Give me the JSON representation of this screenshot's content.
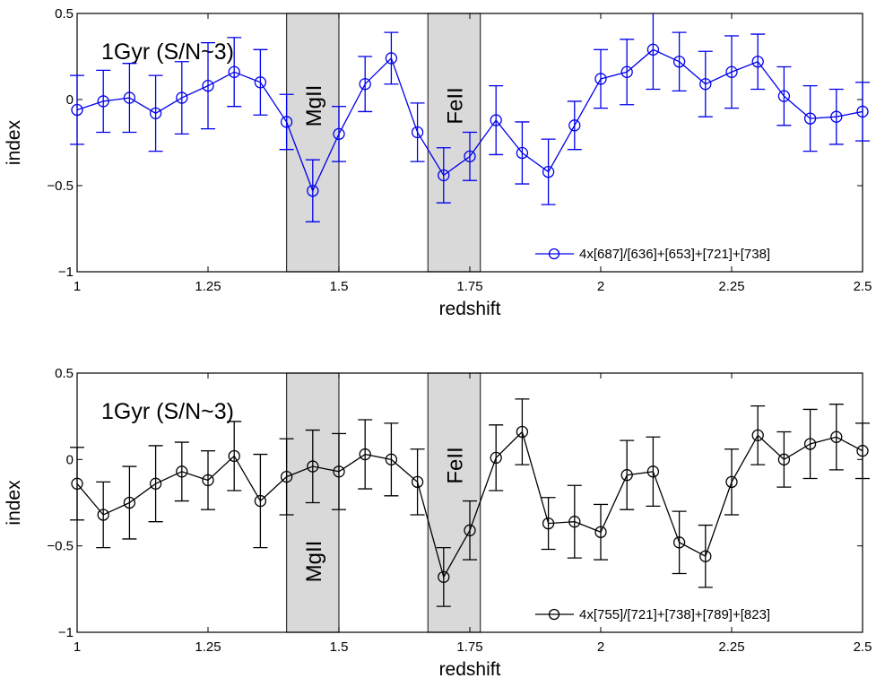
{
  "chart_data": [
    {
      "type": "line",
      "panel": "top",
      "title": "",
      "annotation": "1Gyr (S/N~3)",
      "xlabel": "redshift",
      "ylabel": "index",
      "xlim": [
        1,
        2.5
      ],
      "ylim": [
        -1,
        0.5
      ],
      "xticks": [
        1,
        1.25,
        1.5,
        1.75,
        2,
        2.25,
        2.5
      ],
      "xtick_labels": [
        "1",
        "1.25",
        "1.5",
        "1.75",
        "2",
        "2.25",
        "2.5"
      ],
      "yticks": [
        0.5,
        0,
        -0.5,
        -1
      ],
      "ytick_labels": [
        "0.5",
        "0",
        "−0.5",
        "−1"
      ],
      "color": "#0000ee",
      "legend": {
        "label": "4x[687]/[636]+[653]+[721]+[738]",
        "position": "bottom-right"
      },
      "bands": [
        {
          "label": "MgII",
          "x0": 1.4,
          "x1": 1.5,
          "label_pos": "upper"
        },
        {
          "label": "FeII",
          "x0": 1.67,
          "x1": 1.77,
          "label_pos": "upper"
        }
      ],
      "series": [
        {
          "name": "4x[687]/[636]+[653]+[721]+[738]",
          "x": [
            1.0,
            1.05,
            1.1,
            1.15,
            1.2,
            1.25,
            1.3,
            1.35,
            1.4,
            1.45,
            1.5,
            1.55,
            1.6,
            1.65,
            1.7,
            1.75,
            1.8,
            1.85,
            1.9,
            1.95,
            2.0,
            2.05,
            2.1,
            2.15,
            2.2,
            2.25,
            2.3,
            2.35,
            2.4,
            2.45,
            2.5
          ],
          "y": [
            -0.06,
            -0.01,
            0.01,
            -0.08,
            0.01,
            0.08,
            0.16,
            0.1,
            -0.13,
            -0.53,
            -0.2,
            0.09,
            0.24,
            -0.19,
            -0.44,
            -0.33,
            -0.12,
            -0.31,
            -0.42,
            -0.15,
            0.12,
            0.16,
            0.29,
            0.22,
            0.09,
            0.16,
            0.22,
            0.02,
            -0.11,
            -0.1,
            -0.07
          ],
          "err": [
            0.2,
            0.18,
            0.2,
            0.22,
            0.21,
            0.25,
            0.2,
            0.19,
            0.16,
            0.18,
            0.16,
            0.16,
            0.15,
            0.17,
            0.16,
            0.14,
            0.2,
            0.18,
            0.19,
            0.14,
            0.17,
            0.19,
            0.23,
            0.17,
            0.19,
            0.21,
            0.16,
            0.17,
            0.19,
            0.16,
            0.17
          ]
        }
      ]
    },
    {
      "type": "line",
      "panel": "bottom",
      "title": "",
      "annotation": "1Gyr (S/N~3)",
      "xlabel": "redshift",
      "ylabel": "index",
      "xlim": [
        1,
        2.5
      ],
      "ylim": [
        -1,
        0.5
      ],
      "xticks": [
        1,
        1.25,
        1.5,
        1.75,
        2,
        2.25,
        2.5
      ],
      "xtick_labels": [
        "1",
        "1.25",
        "1.5",
        "1.75",
        "2",
        "2.25",
        "2.5"
      ],
      "yticks": [
        0.5,
        0,
        -0.5,
        -1
      ],
      "ytick_labels": [
        "0.5",
        "0",
        "−0.5",
        "−1"
      ],
      "color": "#000000",
      "legend": {
        "label": "4x[755]/[721]+[738]+[789]+[823]",
        "position": "bottom-right"
      },
      "bands": [
        {
          "label": "MgII",
          "x0": 1.4,
          "x1": 1.5,
          "label_pos": "lower"
        },
        {
          "label": "FeII",
          "x0": 1.67,
          "x1": 1.77,
          "label_pos": "upper"
        }
      ],
      "series": [
        {
          "name": "4x[755]/[721]+[738]+[789]+[823]",
          "x": [
            1.0,
            1.05,
            1.1,
            1.15,
            1.2,
            1.25,
            1.3,
            1.35,
            1.4,
            1.45,
            1.5,
            1.55,
            1.6,
            1.65,
            1.7,
            1.75,
            1.8,
            1.85,
            1.9,
            1.95,
            2.0,
            2.05,
            2.1,
            2.15,
            2.2,
            2.25,
            2.3,
            2.35,
            2.4,
            2.45,
            2.5
          ],
          "y": [
            -0.14,
            -0.32,
            -0.25,
            -0.14,
            -0.07,
            -0.12,
            0.02,
            -0.24,
            -0.1,
            -0.04,
            -0.07,
            0.03,
            0.0,
            -0.13,
            -0.68,
            -0.41,
            0.01,
            0.16,
            -0.37,
            -0.36,
            -0.42,
            -0.09,
            -0.07,
            -0.48,
            -0.56,
            -0.13,
            0.14,
            0.0,
            0.09,
            0.13,
            0.05
          ],
          "err": [
            0.21,
            0.19,
            0.21,
            0.22,
            0.17,
            0.17,
            0.2,
            0.27,
            0.22,
            0.21,
            0.22,
            0.2,
            0.21,
            0.19,
            0.17,
            0.17,
            0.19,
            0.19,
            0.15,
            0.21,
            0.16,
            0.2,
            0.2,
            0.18,
            0.18,
            0.19,
            0.17,
            0.16,
            0.2,
            0.19,
            0.16
          ]
        }
      ]
    }
  ]
}
